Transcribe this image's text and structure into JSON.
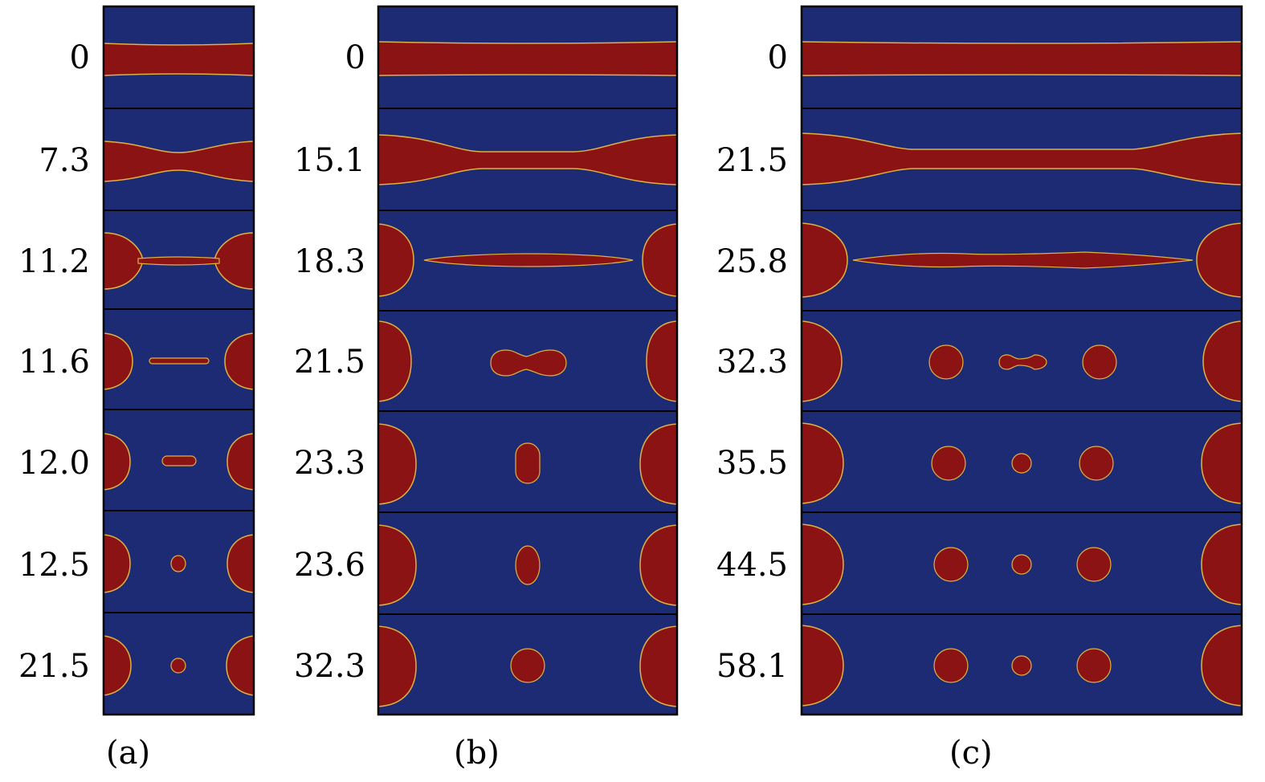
{
  "figure": {
    "colors": {
      "background": "#1c2b74",
      "fluid": "#8b1313",
      "interface": "#f0c040",
      "frame": "#000000"
    },
    "panels": [
      {
        "id": "a",
        "caption": "(a)",
        "times": [
          "0",
          "7.3",
          "11.2",
          "11.6",
          "12.0",
          "12.5",
          "21.5"
        ]
      },
      {
        "id": "b",
        "caption": "(b)",
        "times": [
          "0",
          "15.1",
          "18.3",
          "21.5",
          "23.3",
          "23.6",
          "32.3"
        ]
      },
      {
        "id": "c",
        "caption": "(c)",
        "times": [
          "0",
          "21.5",
          "25.8",
          "32.3",
          "35.5",
          "44.5",
          "58.1"
        ]
      }
    ]
  }
}
